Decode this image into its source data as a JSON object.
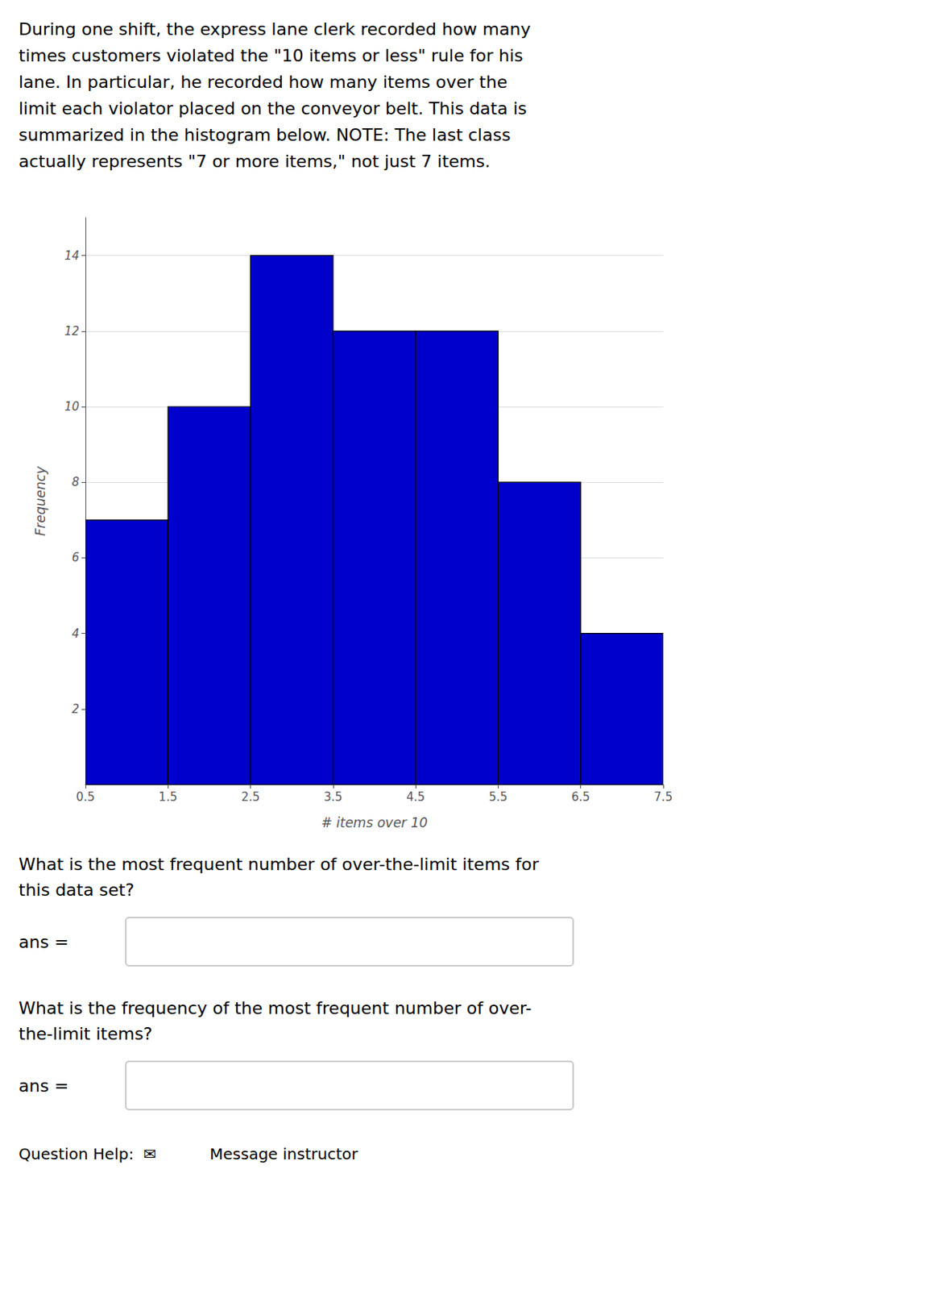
{
  "chart_data": {
    "type": "histogram",
    "bins": [
      0.5,
      1.5,
      2.5,
      3.5,
      4.5,
      5.5,
      6.5,
      7.5
    ],
    "values": [
      7,
      10,
      14,
      12,
      12,
      8,
      4
    ],
    "color": "#0000CC",
    "xlabel": "# items over 10",
    "ylabel": "Frequency",
    "xlim": [
      0.5,
      7.5
    ],
    "ylim": [
      0,
      15
    ],
    "xticks": [
      0.5,
      1.5,
      2.5,
      3.5,
      4.5,
      5.5,
      6.5,
      7.5
    ],
    "yticks": [
      2,
      4,
      6,
      8,
      10,
      12,
      14
    ],
    "grid": true,
    "annotations": [
      "During one shift, the express lane clerk recorded how many\ntimes customers violated the \"10 items or less\" rule for his\nlane. In particular, he recorded how many items over the\nlimit each violator placed on the conveyor belt. This data is\nsummarized in the histogram below. NOTE: The last class\nactually represents \"7 or more items,\" not just 7 items.",
      "What is the most frequent number of over-the-limit items for\nthis data set?",
      "ans =",
      "What is the frequency of the most frequent number of over-\nthe-limit items?",
      "ans =",
      "Question Help:  ✉",
      "Message instructor"
    ]
  }
}
